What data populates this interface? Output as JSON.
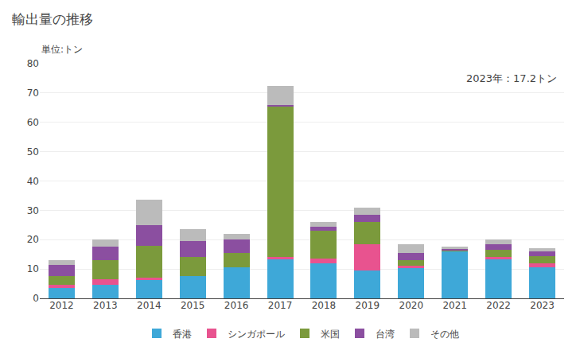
{
  "chart_data": {
    "type": "bar",
    "stacked": true,
    "title": "輸出量の推移",
    "subtitle": "単位:トン",
    "annotations": [
      "2023年：17.2トン"
    ],
    "categories": [
      "2012",
      "2013",
      "2014",
      "2015",
      "2016",
      "2017",
      "2018",
      "2019",
      "2020",
      "2021",
      "2022",
      "2023"
    ],
    "series": [
      {
        "name": "香港",
        "color": "#3EA8D8",
        "values": [
          3.5,
          4.5,
          6.5,
          7.5,
          10.5,
          13.5,
          12.0,
          9.5,
          10.5,
          16.0,
          13.5,
          10.5
        ]
      },
      {
        "name": "シンガポール",
        "color": "#E8538F",
        "values": [
          1.0,
          2.0,
          0.5,
          0.0,
          0.0,
          0.5,
          1.5,
          9.0,
          0.5,
          0.0,
          0.5,
          1.5
        ]
      },
      {
        "name": "米国",
        "color": "#7B9A3C",
        "values": [
          3.0,
          6.5,
          11.0,
          6.5,
          5.0,
          51.5,
          9.5,
          7.5,
          2.0,
          0.5,
          2.5,
          2.5
        ]
      },
      {
        "name": "台湾",
        "color": "#8B4FA0",
        "values": [
          4.0,
          4.5,
          7.0,
          5.5,
          4.5,
          0.5,
          1.5,
          2.5,
          2.5,
          0.5,
          2.0,
          1.5
        ]
      },
      {
        "name": "その他",
        "color": "#BBBBBB",
        "values": [
          1.5,
          2.5,
          8.5,
          4.0,
          2.0,
          6.5,
          1.5,
          2.5,
          3.0,
          0.5,
          1.5,
          1.2
        ]
      }
    ],
    "ylim": [
      0,
      80
    ],
    "yticks": [
      0,
      10,
      20,
      30,
      40,
      50,
      60,
      70,
      80
    ],
    "grid": true,
    "legend": "bottom"
  }
}
